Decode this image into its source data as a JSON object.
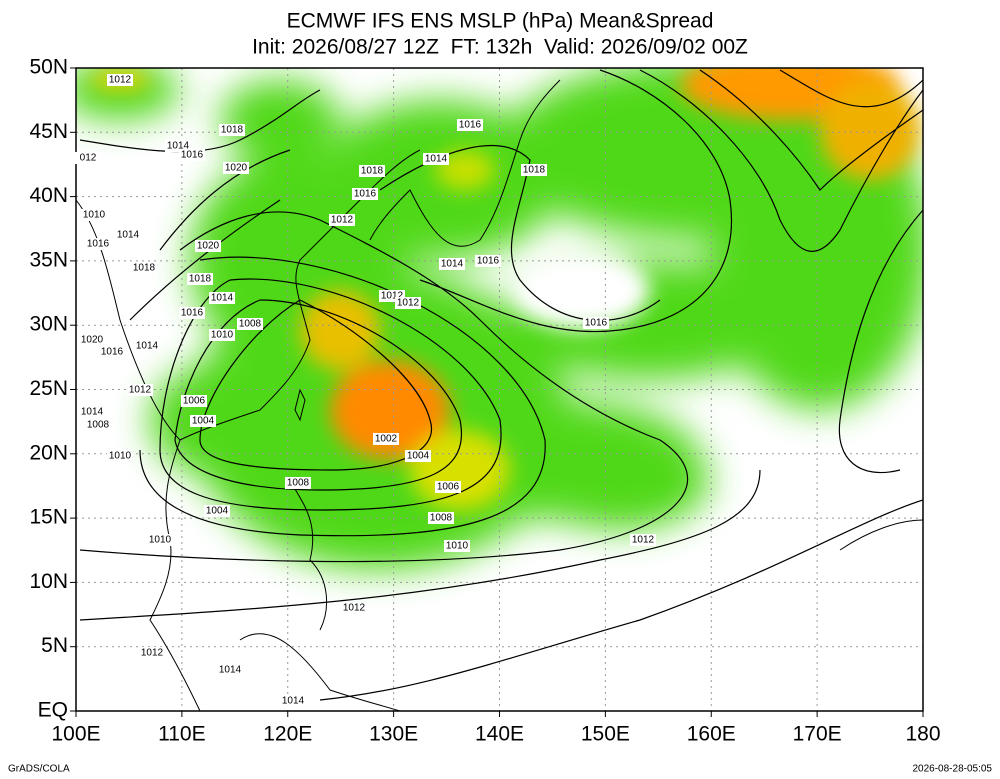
{
  "header": {
    "title": "ECMWF IFS ENS MSLP (hPa) Mean&Spread",
    "subtitle": "Init: 2026/08/27 12Z  FT: 132h  Valid: 2026/09/02 00Z"
  },
  "map": {
    "xlim": [
      100,
      180
    ],
    "ylim": [
      0,
      50
    ],
    "xticks": [
      {
        "value": 100,
        "label": "100E"
      },
      {
        "value": 110,
        "label": "110E"
      },
      {
        "value": 120,
        "label": "120E"
      },
      {
        "value": 130,
        "label": "130E"
      },
      {
        "value": 140,
        "label": "140E"
      },
      {
        "value": 150,
        "label": "150E"
      },
      {
        "value": 160,
        "label": "160E"
      },
      {
        "value": 170,
        "label": "170E"
      },
      {
        "value": 180,
        "label": "180"
      }
    ],
    "yticks": [
      {
        "value": 0,
        "label": "EQ"
      },
      {
        "value": 5,
        "label": "5N"
      },
      {
        "value": 10,
        "label": "10N"
      },
      {
        "value": 15,
        "label": "15N"
      },
      {
        "value": 20,
        "label": "20N"
      },
      {
        "value": 25,
        "label": "25N"
      },
      {
        "value": 30,
        "label": "30N"
      },
      {
        "value": 35,
        "label": "35N"
      },
      {
        "value": 40,
        "label": "40N"
      },
      {
        "value": 45,
        "label": "45N"
      },
      {
        "value": 50,
        "label": "50N"
      }
    ],
    "grid": true,
    "contour_labels": [
      1012,
      1018,
      1014,
      1016,
      "012",
      1020,
      1010,
      1014,
      1016,
      1020,
      1018,
      1018,
      1014,
      1016,
      1008,
      1010,
      1020,
      1016,
      1014,
      1012,
      1006,
      1014,
      1008,
      1004,
      1010,
      1002,
      1004,
      1006,
      1008,
      1008,
      1004,
      1010,
      1010,
      1012,
      1012,
      1012,
      1014,
      1014,
      1016,
      1014,
      1018,
      1016,
      1012,
      1018,
      1014,
      1016,
      1012,
      1012,
      1016
    ]
  },
  "footer": {
    "left": "GrADS/COLA",
    "right": "2026-08-28-05:05"
  }
}
